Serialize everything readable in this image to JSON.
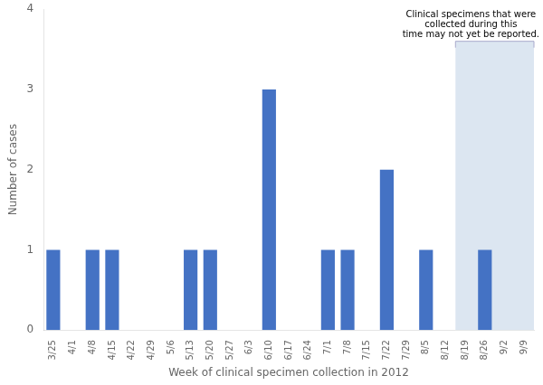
{
  "chart_data": {
    "type": "bar",
    "categories": [
      "3/25",
      "4/1",
      "4/8",
      "4/15",
      "4/22",
      "4/29",
      "5/6",
      "5/13",
      "5/20",
      "5/27",
      "6/3",
      "6/10",
      "6/17",
      "6/24",
      "7/1",
      "7/8",
      "7/15",
      "7/22",
      "7/29",
      "8/5",
      "8/12",
      "8/19",
      "8/26",
      "9/2",
      "9/9"
    ],
    "values": [
      1,
      0,
      1,
      1,
      0,
      0,
      0,
      1,
      1,
      0,
      0,
      3,
      0,
      0,
      1,
      1,
      0,
      2,
      0,
      1,
      0,
      0,
      1,
      0,
      0
    ],
    "color": "#4472C4",
    "xlabel": "Week of clinical specimen collection in 2012",
    "ylabel": "Number of cases",
    "ylim": [
      0,
      4
    ],
    "yticks": [
      0,
      1,
      2,
      3,
      4
    ],
    "grid": false,
    "annotation": "Clinical specimens that were\ncollected during this\ntime may not yet be reported.",
    "highlight": {
      "from": "8/19",
      "to": "9/9",
      "height": 3.6,
      "color": "#DCE6F1",
      "bracket_color": "#AAAACC"
    }
  }
}
